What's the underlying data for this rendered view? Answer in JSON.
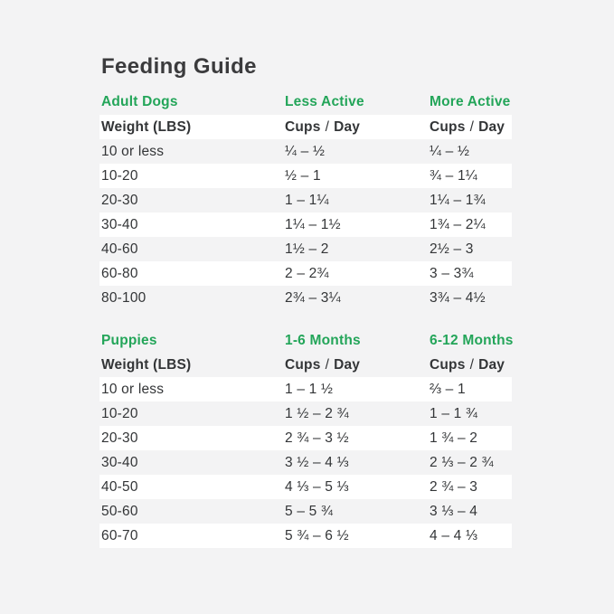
{
  "title": "Feeding Guide",
  "colors": {
    "accent_green": "#23a559",
    "background": "#f3f3f4",
    "stripe_white": "#ffffff",
    "text_dark": "#333537"
  },
  "labels": {
    "weight": "Weight (LBS)",
    "cups": "Cups",
    "slash": "/",
    "day": "Day"
  },
  "adult": {
    "section": "Adult Dogs",
    "col2": "Less Active",
    "col3": "More Active",
    "rows": [
      {
        "weight": "10 or less",
        "cups_a": "¼ – ½",
        "cups_b": "¼ – ½"
      },
      {
        "weight": "10-20",
        "cups_a": "½ – 1",
        "cups_b": "¾ – 1¼"
      },
      {
        "weight": "20-30",
        "cups_a": "1 – 1¼",
        "cups_b": "1¼ – 1¾"
      },
      {
        "weight": "30-40",
        "cups_a": "1¼ – 1½",
        "cups_b": "1¾ – 2¼"
      },
      {
        "weight": "40-60",
        "cups_a": "1½ – 2",
        "cups_b": "2½ – 3"
      },
      {
        "weight": "60-80",
        "cups_a": "2 – 2¾",
        "cups_b": "3 – 3¾"
      },
      {
        "weight": "80-100",
        "cups_a": "2¾ – 3¼",
        "cups_b": "3¾ – 4½"
      }
    ]
  },
  "puppies": {
    "section": "Puppies",
    "col2": "1-6 Months",
    "col3": "6-12 Months",
    "rows": [
      {
        "weight": "10 or less",
        "cups_a": "1 – 1 ½",
        "cups_b": "⅔ – 1"
      },
      {
        "weight": "10-20",
        "cups_a": "1 ½ – 2 ¾",
        "cups_b": "1 – 1 ¾"
      },
      {
        "weight": "20-30",
        "cups_a": "2 ¾ – 3 ½",
        "cups_b": "1 ¾ – 2"
      },
      {
        "weight": "30-40",
        "cups_a": "3 ½ – 4 ⅓",
        "cups_b": "2 ⅓ – 2 ¾"
      },
      {
        "weight": "40-50",
        "cups_a": "4 ⅓ – 5 ⅓",
        "cups_b": "2 ¾ – 3"
      },
      {
        "weight": "50-60",
        "cups_a": "5 – 5 ¾",
        "cups_b": "3 ⅓ – 4"
      },
      {
        "weight": "60-70",
        "cups_a": "5 ¾ – 6 ½",
        "cups_b": "4 – 4 ⅓"
      }
    ]
  }
}
